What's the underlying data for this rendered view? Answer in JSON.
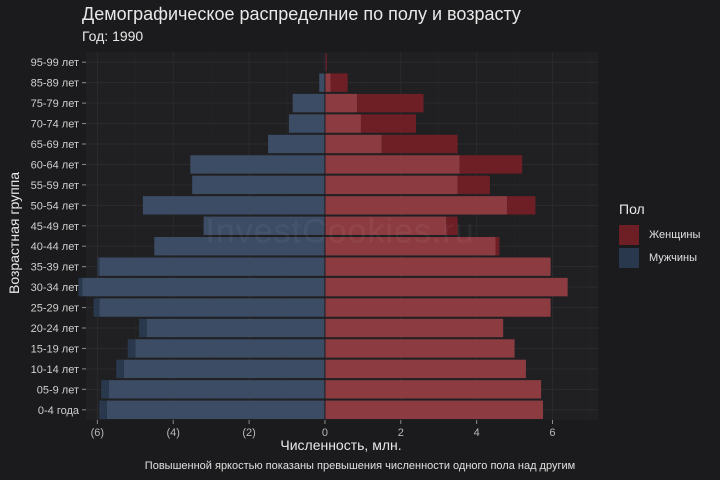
{
  "chart_data": {
    "type": "bar",
    "orientation": "horizontal",
    "title": "Демографическое распределние по полу и возрасту",
    "subtitle": "Год: 1990",
    "xlabel": "Численность, млн.",
    "ylabel": "Возрастная группа",
    "caption": "Повышенной яркостью показаны превышения численности одного пола над другим",
    "watermark": "InvestCookies.ru",
    "xlim": [
      -6.3,
      7.2
    ],
    "x_ticks": [
      {
        "value": -6,
        "label": "(6)"
      },
      {
        "value": -4,
        "label": "(4)"
      },
      {
        "value": -2,
        "label": "(2)"
      },
      {
        "value": 0,
        "label": "0"
      },
      {
        "value": 2,
        "label": "2"
      },
      {
        "value": 4,
        "label": "4"
      },
      {
        "value": 6,
        "label": "6"
      }
    ],
    "categories": [
      "0-4 года",
      "05-9 лет",
      "10-14 лет",
      "15-19 лет",
      "20-24 лет",
      "25-29 лет",
      "30-34 лет",
      "35-39 лет",
      "40-44 лет",
      "45-49 лет",
      "50-54 лет",
      "55-59 лет",
      "60-64 лет",
      "65-69 лет",
      "70-74 лет",
      "75-79 лет",
      "85-89 лет",
      "95-99 лет"
    ],
    "legend_title": "Пол",
    "series": [
      {
        "name": "Женщины",
        "color": "#8c3b41",
        "highlight_color": "#6e1f26",
        "values": [
          5.75,
          5.7,
          5.3,
          5.0,
          4.7,
          5.95,
          6.4,
          5.95,
          4.6,
          3.5,
          5.55,
          4.35,
          5.2,
          3.5,
          2.4,
          2.6,
          0.6,
          0.05
        ]
      },
      {
        "name": "Мужчины",
        "color": "#3c4c64",
        "highlight_color": "#2a384d",
        "values": [
          5.95,
          5.9,
          5.5,
          5.2,
          4.9,
          6.1,
          6.5,
          6.0,
          4.5,
          3.2,
          4.8,
          3.5,
          3.55,
          1.5,
          0.95,
          0.85,
          0.15,
          0.02
        ]
      }
    ]
  }
}
